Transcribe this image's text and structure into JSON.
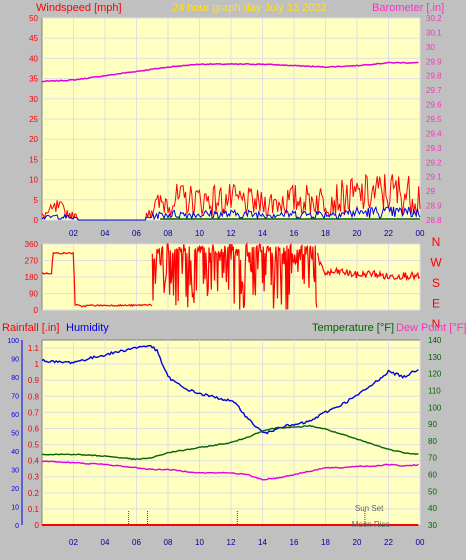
{
  "header": {
    "left": "Windspeed [mph]",
    "center": "24 hour graph day   July 13 2022",
    "right": "Barometer [.in]"
  },
  "colors": {
    "plot_bg": "#ffffc0",
    "frame": "#c0c0c0",
    "grid": "#e0e0e0",
    "red": "#ff0000",
    "blue": "#0000e0",
    "green": "#006400",
    "magenta": "#e000e0",
    "pink": "#ff30c0",
    "title_yellow": "#ffe020"
  },
  "x_ticks": [
    "02",
    "04",
    "06",
    "08",
    "10",
    "12",
    "14",
    "16",
    "18",
    "20",
    "22",
    "00"
  ],
  "chart_data": [
    {
      "type": "line",
      "name": "windspeed-barometer",
      "y_left": {
        "label": "Windspeed [mph]",
        "ticks": [
          "0",
          "5",
          "10",
          "15",
          "20",
          "25",
          "30",
          "35",
          "40",
          "45",
          "50"
        ],
        "range": [
          0,
          50
        ]
      },
      "y_right": {
        "label": "Barometer [.in]",
        "ticks": [
          "28.8",
          "28.9",
          "29",
          "29.1",
          "29.2",
          "29.3",
          "29.4",
          "29.5",
          "29.6",
          "29.7",
          "29.8",
          "29.9",
          "30",
          "30.1",
          "30.2"
        ],
        "range": [
          28.8,
          30.2
        ]
      },
      "series": [
        {
          "name": "Barometer",
          "axis": "right",
          "x": [
            0,
            2,
            4,
            6,
            8,
            10,
            12,
            14,
            16,
            18,
            20,
            22,
            24
          ],
          "y": [
            29.76,
            29.77,
            29.8,
            29.83,
            29.86,
            29.88,
            29.88,
            29.88,
            29.87,
            29.86,
            29.87,
            29.89,
            29.89
          ]
        },
        {
          "name": "Gust",
          "axis": "left",
          "x": [
            0,
            1,
            2,
            4,
            6,
            7,
            8,
            10,
            12,
            14,
            16,
            18,
            20,
            22,
            24
          ],
          "y": [
            1,
            3,
            1,
            0,
            0,
            3,
            5,
            5,
            5,
            4,
            5,
            5,
            6,
            7,
            6
          ]
        },
        {
          "name": "Average",
          "axis": "left",
          "x": [
            0,
            1,
            2,
            4,
            6,
            7,
            8,
            10,
            12,
            14,
            16,
            18,
            20,
            22,
            24
          ],
          "y": [
            0.5,
            1,
            0.5,
            0,
            0,
            1,
            1.5,
            1.5,
            1.5,
            1.5,
            1.5,
            1.5,
            2,
            2,
            2
          ]
        }
      ]
    },
    {
      "type": "line",
      "name": "wind-direction",
      "y_left": {
        "ticks": [
          "0",
          "90",
          "180",
          "270",
          "360"
        ],
        "range": [
          0,
          360
        ]
      },
      "y_right": {
        "ticks": [
          "N",
          "W",
          "S",
          "E",
          "N"
        ]
      },
      "series": [
        {
          "name": "Direction",
          "x": [
            0,
            0.6,
            0.7,
            2,
            2.1,
            2.5,
            3,
            4,
            5,
            6,
            6.9,
            7
          ],
          "y": [
            200,
            200,
            310,
            310,
            30,
            20,
            25,
            25,
            25,
            25,
            30,
            20
          ]
        },
        {
          "name": "Direction",
          "x": [
            17.5,
            17.6,
            18,
            19,
            20,
            21,
            22,
            23,
            24
          ],
          "y": [
            300,
            250,
            200,
            210,
            190,
            200,
            180,
            190,
            180
          ]
        }
      ],
      "scatter_region": {
        "x": [
          7,
          17.5
        ],
        "y": [
          0,
          360
        ]
      }
    },
    {
      "type": "line",
      "name": "rain-humidity-temperature-dewpoint",
      "labels": {
        "rainfall": "Rainfall [.in]",
        "humidity": "Humidity",
        "temperature": "Temperature [°F]",
        "dewpoint": "Dew Point [°F]"
      },
      "y_humidity": {
        "ticks": [
          "0",
          "10",
          "20",
          "30",
          "40",
          "50",
          "60",
          "70",
          "80",
          "90",
          "100"
        ],
        "range": [
          0,
          100
        ]
      },
      "y_rain": {
        "ticks": [
          "0",
          "0.1",
          "0.2",
          "0.3",
          "0.4",
          "0.5",
          "0.6",
          "0.7",
          "0.8",
          "0.9",
          "1",
          "1.1"
        ],
        "range": [
          0,
          1.15
        ]
      },
      "y_temp": {
        "ticks": [
          "30",
          "40",
          "50",
          "60",
          "70",
          "80",
          "90",
          "100",
          "110",
          "120",
          "130",
          "140"
        ],
        "range": [
          30,
          140
        ]
      },
      "series": [
        {
          "name": "Humidity",
          "axis": "humidity",
          "x": [
            0,
            1,
            2,
            3,
            4,
            5,
            6,
            6.9,
            7.3,
            8,
            9,
            10,
            11,
            12,
            12.5,
            13,
            13.5,
            14,
            14.5,
            15,
            16,
            17,
            18,
            19,
            20,
            21,
            22,
            23,
            24
          ],
          "y": [
            89,
            88,
            88,
            90,
            92,
            94,
            96,
            97,
            94,
            80,
            74,
            71,
            69,
            67,
            64,
            58,
            54,
            50,
            50,
            53,
            54,
            56,
            61,
            65,
            70,
            76,
            83,
            80,
            85
          ]
        },
        {
          "name": "Temperature",
          "axis": "temp",
          "x": [
            0,
            2,
            4,
            6,
            7,
            8,
            10,
            12,
            13,
            14,
            15,
            16,
            17,
            18,
            19,
            20,
            21,
            22,
            23,
            24
          ],
          "y": [
            72,
            72,
            71,
            69,
            70,
            73,
            76,
            79,
            82,
            86,
            88,
            88,
            89,
            87,
            84,
            81,
            78,
            75,
            73,
            72
          ]
        },
        {
          "name": "Dew Point",
          "axis": "temp",
          "x": [
            0,
            2,
            4,
            6,
            7,
            8,
            10,
            12,
            13,
            14,
            15,
            16,
            17,
            18,
            19,
            20,
            21,
            22,
            23,
            24
          ],
          "y": [
            68,
            67,
            66,
            64,
            63,
            63,
            61,
            61,
            60,
            57,
            58,
            60,
            62,
            64,
            64,
            65,
            65,
            66,
            65,
            66
          ]
        },
        {
          "name": "Rainfall",
          "axis": "rain",
          "x": [
            0,
            24
          ],
          "y": [
            0,
            0
          ]
        }
      ],
      "annotations": [
        {
          "text": "Sun Set",
          "x": 20.5
        },
        {
          "text": "Moon Rise",
          "x": 20.3
        }
      ],
      "event_markers_x": [
        5.5,
        6.7,
        12.4,
        20.5
      ]
    }
  ]
}
